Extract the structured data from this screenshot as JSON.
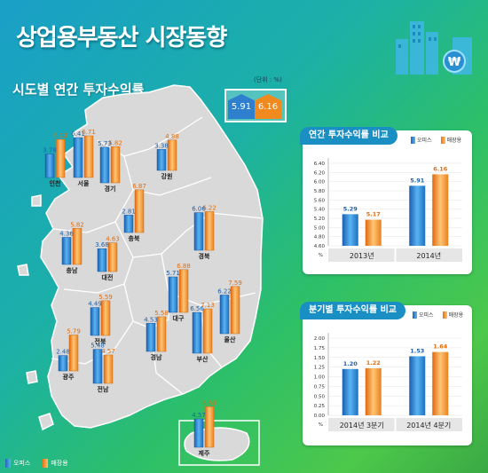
{
  "title": "상업용부동산 시장동향",
  "subtitle": "시도별 연간 투자수익률",
  "unit": "(단위 : %)",
  "national": {
    "office": "5.91",
    "retail": "6.16"
  },
  "legend": {
    "office": "오피스",
    "retail": "매장용"
  },
  "colors": {
    "office": "#2f7fcf",
    "retail": "#f08a1e",
    "panel_title": "#1a8fc4",
    "land": "#d9d9d9"
  },
  "chart_data": [
    {
      "type": "bar",
      "title": "시도별 연간 투자수익률",
      "unit": "(단위 : %)",
      "categories": [
        "인천",
        "서울",
        "경기",
        "강원",
        "충북",
        "충남",
        "대전",
        "경북",
        "전북",
        "대구",
        "울산",
        "광주",
        "경남",
        "부산",
        "전남",
        "제주"
      ],
      "series": [
        {
          "name": "오피스",
          "values": [
            3.78,
            6.41,
            5.73,
            3.38,
            2.81,
            4.36,
            3.68,
            6.06,
            4.49,
            5.71,
            6.22,
            2.48,
            4.53,
            6.56,
            5.48,
            4.57
          ]
        },
        {
          "name": "매장용",
          "values": [
            6.13,
            6.71,
            5.82,
            4.88,
            6.87,
            5.82,
            4.63,
            6.22,
            5.59,
            6.88,
            7.59,
            5.79,
            5.58,
            7.13,
            4.57,
            6.53
          ]
        }
      ]
    },
    {
      "type": "bar",
      "title": "연간 투자수익률 비교",
      "categories": [
        "2013년",
        "2014년"
      ],
      "series": [
        {
          "name": "오피스",
          "values": [
            5.29,
            5.91
          ]
        },
        {
          "name": "매장용",
          "values": [
            5.17,
            6.16
          ]
        }
      ],
      "yticks": [
        "6.40",
        "6.20",
        "6.00",
        "5.80",
        "5.60",
        "5.40",
        "5.20",
        "5.00",
        "4.80",
        "4.60",
        "%"
      ],
      "ylim": [
        4.6,
        6.4
      ]
    },
    {
      "type": "bar",
      "title": "분기별 투자수익률 비교",
      "categories": [
        "2014년 3분기",
        "2014년 4분기"
      ],
      "series": [
        {
          "name": "오피스",
          "values": [
            1.2,
            1.53
          ]
        },
        {
          "name": "매장용",
          "values": [
            1.22,
            1.64
          ]
        }
      ],
      "yticks": [
        "2.00",
        "1.75",
        "1.50",
        "1.25",
        "1.00",
        "0.75",
        "0.50",
        "0.25",
        "0.00",
        "%"
      ],
      "ylim": [
        0,
        2.0
      ]
    }
  ]
}
